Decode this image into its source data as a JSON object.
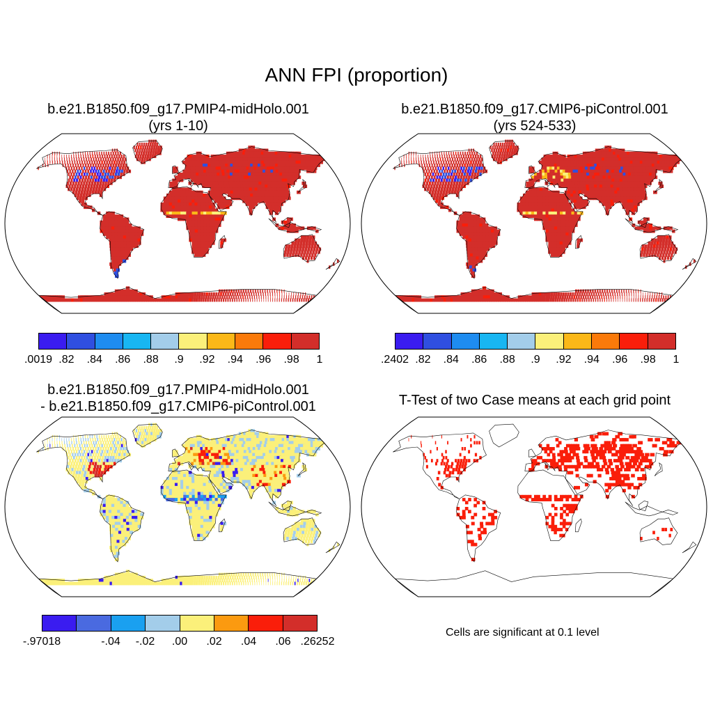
{
  "title": "ANN FPI (proportion)",
  "panels": [
    {
      "id": "p1",
      "title_line1": "b.e21.B1850.f09_g17.PMIP4-midHolo.001",
      "title_line2": "(yrs 1-10)"
    },
    {
      "id": "p2",
      "title_line1": "b.e21.B1850.f09_g17.CMIP6-piControl.001",
      "title_line2": "(yrs 524-533)"
    },
    {
      "id": "p3",
      "title_line1": "b.e21.B1850.f09_g17.PMIP4-midHolo.001",
      "title_line2": "- b.e21.B1850.f09_g17.CMIP6-piControl.001"
    },
    {
      "id": "p4",
      "title_line1": "T-Test of two Case means at each grid point"
    }
  ],
  "colorbar1": {
    "colors": [
      "#3a1cf0",
      "#2f4fe0",
      "#1e8cf0",
      "#18b6f2",
      "#a3cdea",
      "#fbf07a",
      "#fbb818",
      "#fa7a0a",
      "#fa1e0a",
      "#d32e2a"
    ],
    "labels": [
      ".0019",
      ".82",
      ".84",
      ".86",
      ".88",
      ".9",
      ".92",
      ".94",
      ".96",
      ".98",
      "1"
    ]
  },
  "colorbar2": {
    "colors": [
      "#3a1cf0",
      "#2f4fe0",
      "#1e8cf0",
      "#18b6f2",
      "#a3cdea",
      "#fbf07a",
      "#fbb818",
      "#fa7a0a",
      "#fa1e0a",
      "#d32e2a"
    ],
    "labels": [
      ".2402",
      ".82",
      ".84",
      ".86",
      ".88",
      ".9",
      ".92",
      ".94",
      ".96",
      ".98",
      "1"
    ]
  },
  "colorbar3": {
    "colors": [
      "#3a1cf0",
      "#4a6ae0",
      "#1aa0f0",
      "#a3cdea",
      "#fbf07a",
      "#fb9a10",
      "#fa1e0a",
      "#d32e2a"
    ],
    "labels": [
      "-.97018",
      "-.04",
      "-.02",
      ".00",
      ".02",
      ".04",
      ".06",
      ".26252"
    ]
  },
  "note": "Cells are significant at 0.1 level"
}
